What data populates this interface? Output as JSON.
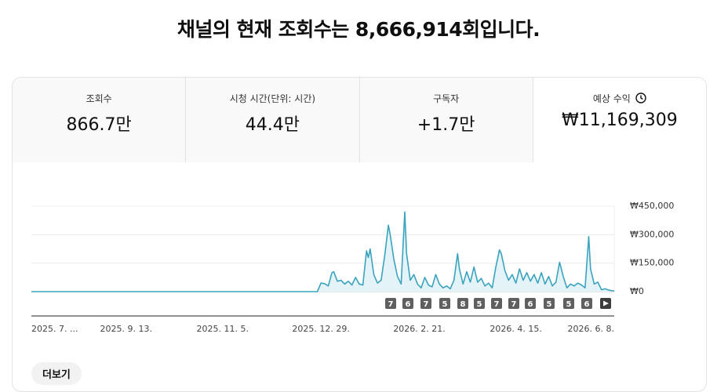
{
  "header": {
    "title": "채널의 현재 조회수는 8,666,914회입니다."
  },
  "metrics": [
    {
      "label": "조회수",
      "value": "866.7만"
    },
    {
      "label": "시청 시간(단위: 시간)",
      "value": "44.4만"
    },
    {
      "label": "구독자",
      "value": "+1.7만"
    },
    {
      "label": "예상 수익",
      "value": "₩11,169,309"
    }
  ],
  "selected_metric": 3,
  "chart_data": {
    "type": "area",
    "x": [
      "2025-07-23",
      "2025-12-27",
      "2025-12-29",
      "2025-12-31",
      "2026-01-02",
      "2026-01-04",
      "2026-01-05",
      "2026-01-07",
      "2026-01-09",
      "2026-01-11",
      "2026-01-13",
      "2026-01-15",
      "2026-01-17",
      "2026-01-19",
      "2026-01-21",
      "2026-01-23",
      "2026-01-24",
      "2026-01-25",
      "2026-01-27",
      "2026-01-29",
      "2026-01-31",
      "2026-02-02",
      "2026-02-04",
      "2026-02-05",
      "2026-02-07",
      "2026-02-09",
      "2026-02-11",
      "2026-02-13",
      "2026-02-14",
      "2026-02-16",
      "2026-02-18",
      "2026-02-20",
      "2026-02-22",
      "2026-02-24",
      "2026-02-26",
      "2026-02-28",
      "2026-03-02",
      "2026-03-04",
      "2026-03-06",
      "2026-03-08",
      "2026-03-10",
      "2026-03-12",
      "2026-03-14",
      "2026-03-15",
      "2026-03-17",
      "2026-03-19",
      "2026-03-21",
      "2026-03-23",
      "2026-03-25",
      "2026-03-27",
      "2026-03-29",
      "2026-03-31",
      "2026-04-02",
      "2026-04-04",
      "2026-04-06",
      "2026-04-07",
      "2026-04-09",
      "2026-04-11",
      "2026-04-13",
      "2026-04-15",
      "2026-04-17",
      "2026-04-19",
      "2026-04-21",
      "2026-04-23",
      "2026-04-25",
      "2026-04-27",
      "2026-04-29",
      "2026-05-01",
      "2026-05-03",
      "2026-05-05",
      "2026-05-07",
      "2026-05-09",
      "2026-05-11",
      "2026-05-13",
      "2026-05-15",
      "2026-05-17",
      "2026-05-19",
      "2026-05-21",
      "2026-05-23",
      "2026-05-25",
      "2026-05-26",
      "2026-05-28",
      "2026-05-30",
      "2026-06-01",
      "2026-06-03",
      "2026-06-05",
      "2026-06-08"
    ],
    "values": [
      0,
      0,
      45000,
      42000,
      30000,
      100000,
      105000,
      55000,
      60000,
      40000,
      55000,
      35000,
      75000,
      40000,
      35000,
      215000,
      180000,
      225000,
      90000,
      45000,
      60000,
      190000,
      350000,
      300000,
      170000,
      80000,
      40000,
      420000,
      200000,
      60000,
      90000,
      40000,
      20000,
      75000,
      35000,
      25000,
      90000,
      40000,
      20000,
      30000,
      15000,
      60000,
      200000,
      120000,
      40000,
      105000,
      50000,
      130000,
      50000,
      70000,
      30000,
      45000,
      20000,
      130000,
      220000,
      200000,
      110000,
      60000,
      90000,
      45000,
      120000,
      60000,
      100000,
      55000,
      90000,
      45000,
      100000,
      40000,
      80000,
      30000,
      50000,
      155000,
      80000,
      20000,
      40000,
      30000,
      45000,
      35000,
      20000,
      290000,
      120000,
      40000,
      50000,
      10000,
      15000,
      8000,
      3000
    ],
    "color": "#3aa3bd",
    "fill_color": "#e4f3f7",
    "xlim": [
      "2025-07-23",
      "2026-06-08"
    ],
    "xticks": [
      {
        "value": "2025-07-23",
        "label": "2025. 7. ..."
      },
      {
        "value": "2025-09-13",
        "label": "2025. 9. 13."
      },
      {
        "value": "2025-11-05",
        "label": "2025. 11. 5."
      },
      {
        "value": "2025-12-29",
        "label": "2025. 12. 29."
      },
      {
        "value": "2026-02-21",
        "label": "2026. 2. 21."
      },
      {
        "value": "2026-04-15",
        "label": "2026. 4. 15."
      },
      {
        "value": "2026-06-08",
        "label": "2026. 6. 8."
      }
    ],
    "ylim": [
      0,
      450000
    ],
    "yticks": [
      {
        "value": 0,
        "label": "₩0"
      },
      {
        "value": 150000,
        "label": "₩150,000"
      },
      {
        "value": 300000,
        "label": "₩300,000"
      },
      {
        "value": 450000,
        "label": "₩450,000"
      }
    ],
    "grid": true
  },
  "video_markers": [
    7,
    6,
    7,
    5,
    8,
    5,
    7,
    7,
    6,
    5,
    5,
    6
  ],
  "more_button": "더보기"
}
